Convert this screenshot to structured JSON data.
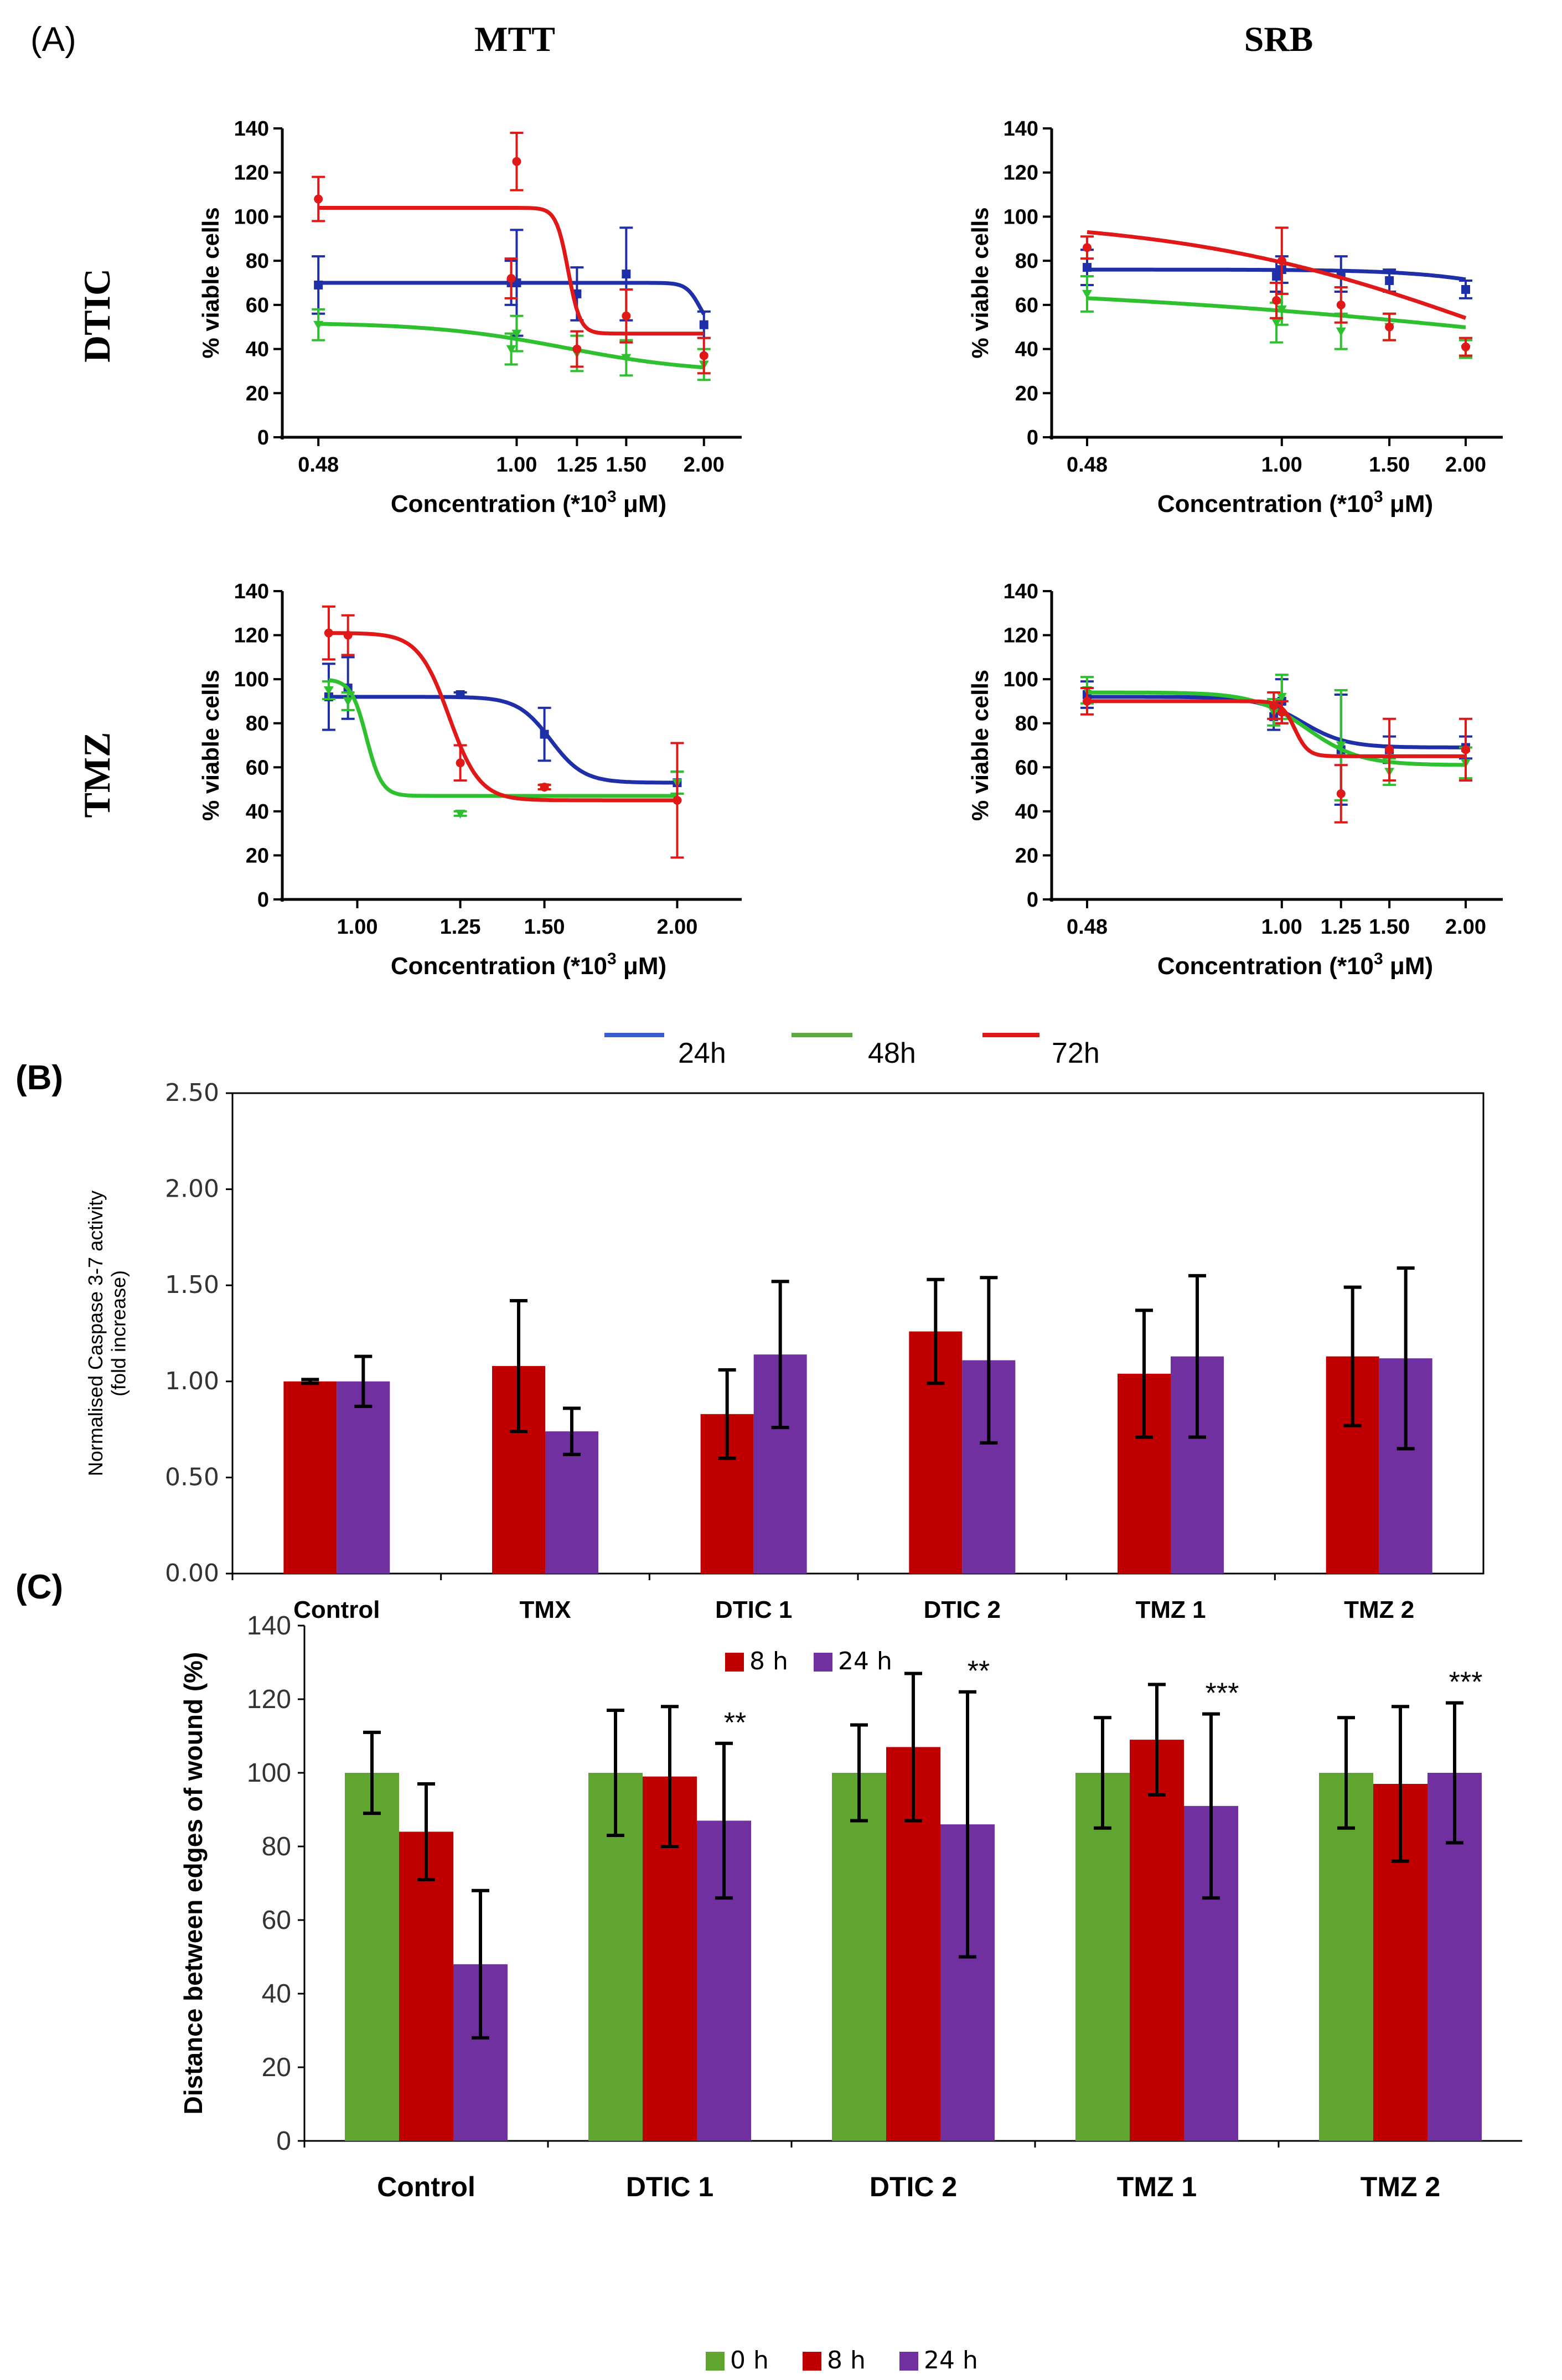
{
  "panel_labels": {
    "a": "(A)",
    "b": "(B)",
    "c": "(C)"
  },
  "column_headers": [
    "MTT",
    "SRB"
  ],
  "row_headers": [
    "DTIC",
    "TMZ"
  ],
  "colors": {
    "h24": "#1f2fa8",
    "h48": "#2ec02e",
    "h72": "#e01818",
    "red_bar": "#c00000",
    "purple_bar": "#7030a0",
    "green_bar": "#5fa52f"
  },
  "legend_a": [
    {
      "label": "24h",
      "color": "#3a5fcd"
    },
    {
      "label": "48h",
      "color": "#5aaa3c"
    },
    {
      "label": "72h",
      "color": "#e01818"
    }
  ],
  "chart_data": [
    {
      "id": "a_mtt_dtic",
      "type": "line",
      "xscale": "log",
      "xlabel": "Concentration (*10³ μM)",
      "ylabel": "% viable cells",
      "xticks": [
        0.48,
        1.0,
        1.25,
        1.5,
        2.0
      ],
      "xtick_labels": [
        "0.48",
        "1.00",
        "1.25",
        "1.50",
        "2.00"
      ],
      "xlim": [
        0.42,
        2.3
      ],
      "ylim": [
        0,
        140
      ],
      "yticks": [
        0,
        20,
        40,
        60,
        80,
        100,
        120,
        140
      ],
      "series": [
        {
          "name": "24h",
          "x": [
            0.48,
            0.98,
            1.0,
            1.25,
            1.5,
            2.0
          ],
          "y": [
            69,
            70,
            70,
            65,
            74,
            51
          ],
          "err": [
            13,
            10,
            24,
            12,
            21,
            6
          ],
          "fit": {
            "top": 70,
            "bottom": 48,
            "ec50": 1.97,
            "hill": 40
          }
        },
        {
          "name": "48h",
          "x": [
            0.48,
            0.98,
            1.0,
            1.25,
            1.5,
            2.0
          ],
          "y": [
            51,
            40,
            47,
            38,
            36,
            33
          ],
          "err": [
            7,
            7,
            8,
            8,
            8,
            7
          ],
          "fit": {
            "top": 52,
            "bottom": 29,
            "ec50": 1.2,
            "hill": 4
          }
        },
        {
          "name": "72h",
          "x": [
            0.48,
            0.98,
            1.0,
            1.25,
            1.5,
            2.0
          ],
          "y": [
            108,
            72,
            125,
            40,
            55,
            37
          ],
          "err": [
            10,
            9,
            13,
            8,
            12,
            8
          ],
          "fit": {
            "top": 104,
            "bottom": 47,
            "ec50": 1.21,
            "hill": 45
          }
        }
      ]
    },
    {
      "id": "a_srb_dtic",
      "type": "line",
      "xscale": "log",
      "xlabel": "Concentration (*10³ μM)",
      "ylabel": "% viable cells",
      "xticks": [
        0.48,
        1.0,
        1.5,
        2.0
      ],
      "xtick_labels": [
        "0.48",
        "1.00",
        "1.50",
        "2.00"
      ],
      "xlim": [
        0.42,
        2.3
      ],
      "ylim": [
        0,
        140
      ],
      "yticks": [
        0,
        20,
        40,
        60,
        80,
        100,
        120,
        140
      ],
      "series": [
        {
          "name": "24h",
          "x": [
            0.48,
            0.98,
            1.0,
            1.25,
            1.5,
            2.0
          ],
          "y": [
            77,
            73,
            76,
            74,
            71,
            67
          ],
          "err": [
            8,
            7,
            6,
            8,
            5,
            4
          ],
          "fit": {
            "top": 76,
            "bottom": 55,
            "ec50": 2.6,
            "hill": 5
          }
        },
        {
          "name": "48h",
          "x": [
            0.48,
            0.98,
            1.0,
            1.25,
            1.5,
            2.0
          ],
          "y": [
            65,
            52,
            58,
            48,
            50,
            40
          ],
          "err": [
            8,
            9,
            7,
            8,
            6,
            4
          ],
          "fit": {
            "top": 72,
            "bottom": 0,
            "ec50": 5.5,
            "hill": 0.8
          }
        },
        {
          "name": "72h",
          "x": [
            0.48,
            0.98,
            1.0,
            1.25,
            1.5,
            2.0
          ],
          "y": [
            86,
            62,
            80,
            60,
            50,
            41
          ],
          "err": [
            5,
            8,
            15,
            8,
            6,
            4
          ],
          "fit": {
            "top": 100,
            "bottom": 0,
            "ec50": 2.2,
            "hill": 1.7
          }
        }
      ]
    },
    {
      "id": "a_mtt_tmz",
      "type": "line",
      "xscale": "log",
      "xlabel": "Concentration (*10³ μM)",
      "ylabel": "% viable cells",
      "xticks": [
        1.0,
        1.25,
        1.5,
        2.0
      ],
      "xtick_labels": [
        "1.00",
        "1.25",
        "1.50",
        "2.00"
      ],
      "xlim": [
        0.85,
        2.3
      ],
      "ylim": [
        0,
        140
      ],
      "yticks": [
        0,
        20,
        40,
        60,
        80,
        100,
        120,
        140
      ],
      "series": [
        {
          "name": "24h",
          "x": [
            0.94,
            0.98,
            1.25,
            1.5,
            2.0
          ],
          "y": [
            92,
            96,
            93,
            75,
            53
          ],
          "err": [
            15,
            14,
            1,
            12,
            5
          ],
          "fit": {
            "top": 92,
            "bottom": 53,
            "ec50": 1.52,
            "hill": 28
          }
        },
        {
          "name": "48h",
          "x": [
            0.94,
            0.98,
            1.25,
            1.5,
            2.0
          ],
          "y": [
            95,
            90,
            39,
            51,
            53
          ],
          "err": [
            4,
            4,
            1,
            1,
            5
          ],
          "fit": {
            "top": 100,
            "bottom": 47,
            "ec50": 1.02,
            "hill": 60
          }
        },
        {
          "name": "72h",
          "x": [
            0.94,
            0.98,
            1.25,
            1.5,
            2.0
          ],
          "y": [
            121,
            120,
            62,
            51,
            45
          ],
          "err": [
            12,
            9,
            8,
            1,
            26
          ],
          "fit": {
            "top": 121,
            "bottom": 45,
            "ec50": 1.22,
            "hill": 30
          }
        }
      ]
    },
    {
      "id": "a_srb_tmz",
      "type": "line",
      "xscale": "log",
      "xlabel": "Concentration (*10³ μM)",
      "ylabel": "% viable cells",
      "xticks": [
        0.48,
        1.0,
        1.25,
        1.5,
        2.0
      ],
      "xtick_labels": [
        "0.48",
        "1.00",
        "1.25",
        "1.50",
        "2.00"
      ],
      "xlim": [
        0.42,
        2.3
      ],
      "ylim": [
        0,
        140
      ],
      "yticks": [
        0,
        20,
        40,
        60,
        80,
        100,
        120,
        140
      ],
      "series": [
        {
          "name": "24h",
          "x": [
            0.48,
            0.97,
            1.0,
            1.25,
            1.5,
            2.0
          ],
          "y": [
            93,
            83,
            90,
            68,
            68,
            69
          ],
          "err": [
            6,
            6,
            10,
            25,
            6,
            5
          ],
          "fit": {
            "top": 92,
            "bottom": 69,
            "ec50": 1.08,
            "hill": 12
          }
        },
        {
          "name": "48h",
          "x": [
            0.48,
            0.97,
            1.0,
            1.25,
            1.5,
            2.0
          ],
          "y": [
            95,
            85,
            92,
            70,
            58,
            62
          ],
          "err": [
            6,
            6,
            10,
            25,
            6,
            7
          ],
          "fit": {
            "top": 94,
            "bottom": 61,
            "ec50": 1.1,
            "hill": 10
          }
        },
        {
          "name": "72h",
          "x": [
            0.48,
            0.97,
            1.0,
            1.25,
            1.5,
            2.0
          ],
          "y": [
            90,
            88,
            85,
            48,
            68,
            68
          ],
          "err": [
            6,
            6,
            5,
            13,
            14,
            14
          ],
          "fit": {
            "top": 90,
            "bottom": 65,
            "ec50": 1.05,
            "hill": 40
          }
        }
      ]
    },
    {
      "id": "b_caspase",
      "type": "bar",
      "categories": [
        "Control",
        "TMX",
        "DTIC 1",
        "DTIC 2",
        "TMZ 1",
        "TMZ 2"
      ],
      "ylabel": "Normalised Caspase 3-7 activity (fold increase)",
      "ylim": [
        0,
        2.5
      ],
      "yticks": [
        "0.00",
        "0.50",
        "1.00",
        "1.50",
        "2.00",
        "2.50"
      ],
      "series": [
        {
          "name": "8 h",
          "values": [
            1.0,
            1.08,
            0.83,
            1.26,
            1.04,
            1.13
          ],
          "err": [
            0.01,
            0.34,
            0.23,
            0.27,
            0.33,
            0.36
          ]
        },
        {
          "name": "24 h",
          "values": [
            1.0,
            0.74,
            1.14,
            1.11,
            1.13,
            1.12
          ],
          "err": [
            0.13,
            0.12,
            0.38,
            0.43,
            0.42,
            0.47
          ]
        }
      ]
    },
    {
      "id": "c_wound",
      "type": "bar",
      "categories": [
        "Control",
        "DTIC 1",
        "DTIC 2",
        "TMZ 1",
        "TMZ 2"
      ],
      "ylabel": "Distance between edges of wound (%)",
      "ylim": [
        0,
        140
      ],
      "yticks": [
        "0",
        "20",
        "40",
        "60",
        "80",
        "100",
        "120",
        "140"
      ],
      "series": [
        {
          "name": "0 h",
          "values": [
            100,
            100,
            100,
            100,
            100
          ],
          "err": [
            11,
            17,
            13,
            15,
            15
          ]
        },
        {
          "name": "8 h",
          "values": [
            84,
            99,
            107,
            109,
            97
          ],
          "err": [
            13,
            19,
            20,
            15,
            21
          ]
        },
        {
          "name": "24 h",
          "values": [
            48,
            87,
            86,
            91,
            100
          ],
          "err": [
            20,
            21,
            36,
            25,
            19
          ]
        }
      ],
      "annotations": [
        "",
        "**",
        "**",
        "***",
        "***"
      ]
    }
  ]
}
